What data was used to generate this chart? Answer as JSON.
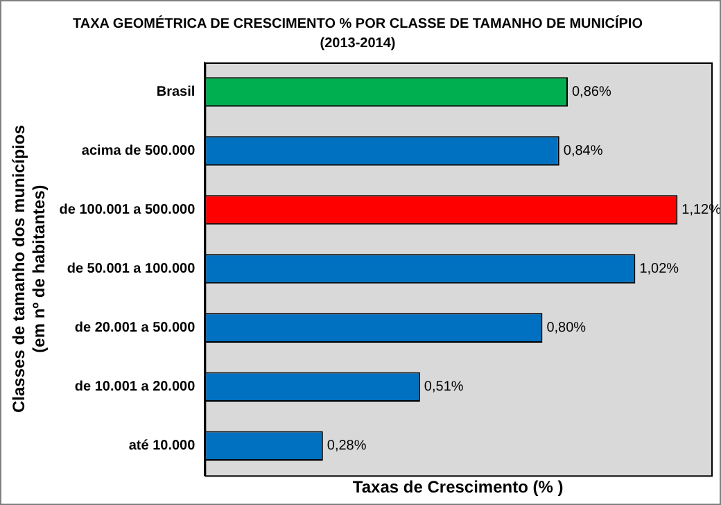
{
  "chart_data": {
    "type": "bar",
    "orientation": "horizontal",
    "title": "TAXA GEOMÉTRICA DE CRESCIMENTO % POR CLASSE DE TAMANHO DE MUNICÍPIO",
    "subtitle": "(2013-2014)",
    "xlabel": "Taxas de Crescimento (% )",
    "ylabel": "Classes de tamanho dos municípios\n(em nº de habitantes)",
    "categories": [
      "Brasil",
      "acima de 500.000",
      "de 100.001 a 500.000",
      "de 50.001 a 100.000",
      "de 20.001 a 50.000",
      "de 10.001 a 20.000",
      "até 10.000"
    ],
    "values": [
      0.86,
      0.84,
      1.12,
      1.02,
      0.8,
      0.51,
      0.28
    ],
    "colors": [
      "#00b050",
      "#0070c0",
      "#ff0000",
      "#0070c0",
      "#0070c0",
      "#0070c0",
      "#0070c0"
    ],
    "value_labels": [
      "0,86%",
      "0,84%",
      "1,12%",
      "1,02%",
      "0,80%",
      "0,51%",
      "0,28%"
    ],
    "xlim": [
      0,
      1.2
    ],
    "tick_labels": "y",
    "grid": false,
    "legend": false
  }
}
